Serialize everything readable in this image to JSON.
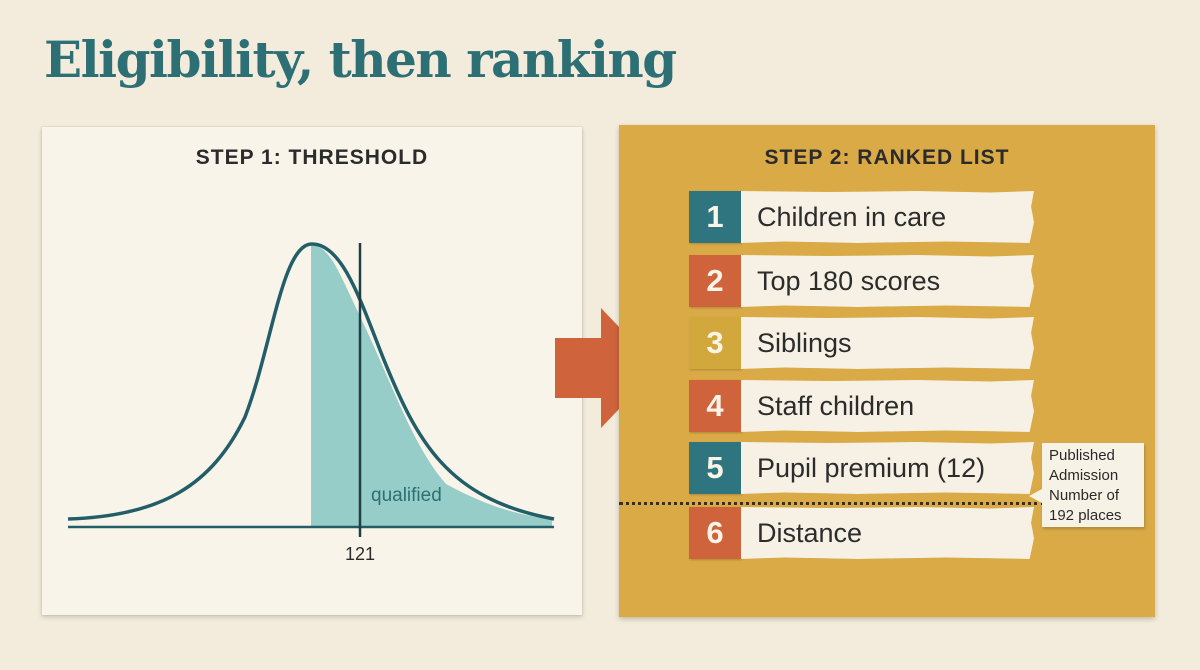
{
  "title": "Eligibility, then ranking",
  "step1": {
    "title": "STEP 1: THRESHOLD",
    "qualified_label": "qualified",
    "threshold_label": "121"
  },
  "step2": {
    "title": "STEP 2: RANKED LIST",
    "items": [
      {
        "num": "1",
        "label": "Children in care",
        "color": "#2e7580"
      },
      {
        "num": "2",
        "label": "Top 180 scores",
        "color": "#cf643c"
      },
      {
        "num": "3",
        "label": "Siblings",
        "color": "#d2a73c"
      },
      {
        "num": "4",
        "label": "Staff children",
        "color": "#cf643c"
      },
      {
        "num": "5",
        "label": "Pupil premium (12)",
        "color": "#2e7580"
      },
      {
        "num": "6",
        "label": "Distance",
        "color": "#cf643c"
      }
    ],
    "callout": [
      "Published",
      "Admission",
      "Number of",
      "192 places"
    ]
  },
  "colors": {
    "teal": "#2c6f74",
    "orange": "#cf643c",
    "gold": "#d9aa46",
    "cream": "#f8f4e9"
  }
}
